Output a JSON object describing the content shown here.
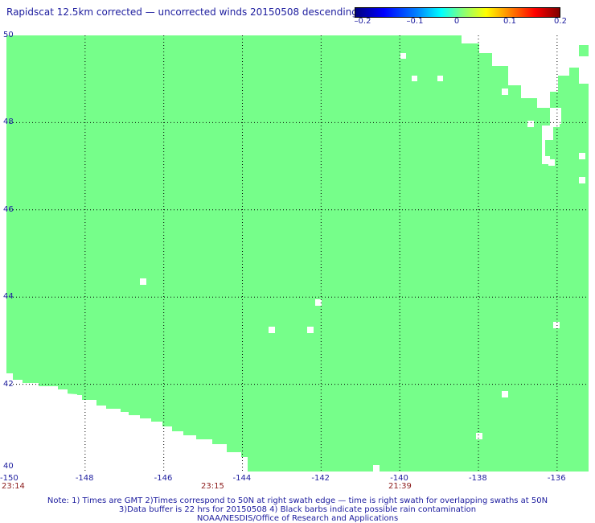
{
  "title": "Rapidscat 12.5km corrected — uncorrected winds 20150508 descending",
  "colorbar": {
    "ticks": [
      "–0.2",
      "–0.1",
      "0",
      "0.1",
      "0.2"
    ],
    "range": [
      -0.2,
      0.2
    ]
  },
  "map": {
    "lon_range": [
      -150,
      -135.2
    ],
    "lat_range": [
      40,
      50
    ],
    "lon_ticks": [
      "-150",
      "-148",
      "-146",
      "-144",
      "-142",
      "-140",
      "-138",
      "-136"
    ],
    "lat_ticks": [
      "50",
      "48",
      "46",
      "44",
      "42",
      "40"
    ],
    "grid": "dotted",
    "colors": {
      "wind_diff_zero": "#76fe8a",
      "no_data": "#ffffff",
      "grid": "#000000"
    }
  },
  "times": [
    "23:14",
    "23:15",
    "21:39"
  ],
  "notes": [
    "Note: 1) Times are GMT 2)Times correspond to 50N at right swath edge — time is right swath for overlapping swaths at 50N",
    "3)Data buffer is 22 hrs for 20150508 4) Black barbs indicate possible rain contamination",
    "NOAA/NESDIS/Office of Research and Applications"
  ]
}
